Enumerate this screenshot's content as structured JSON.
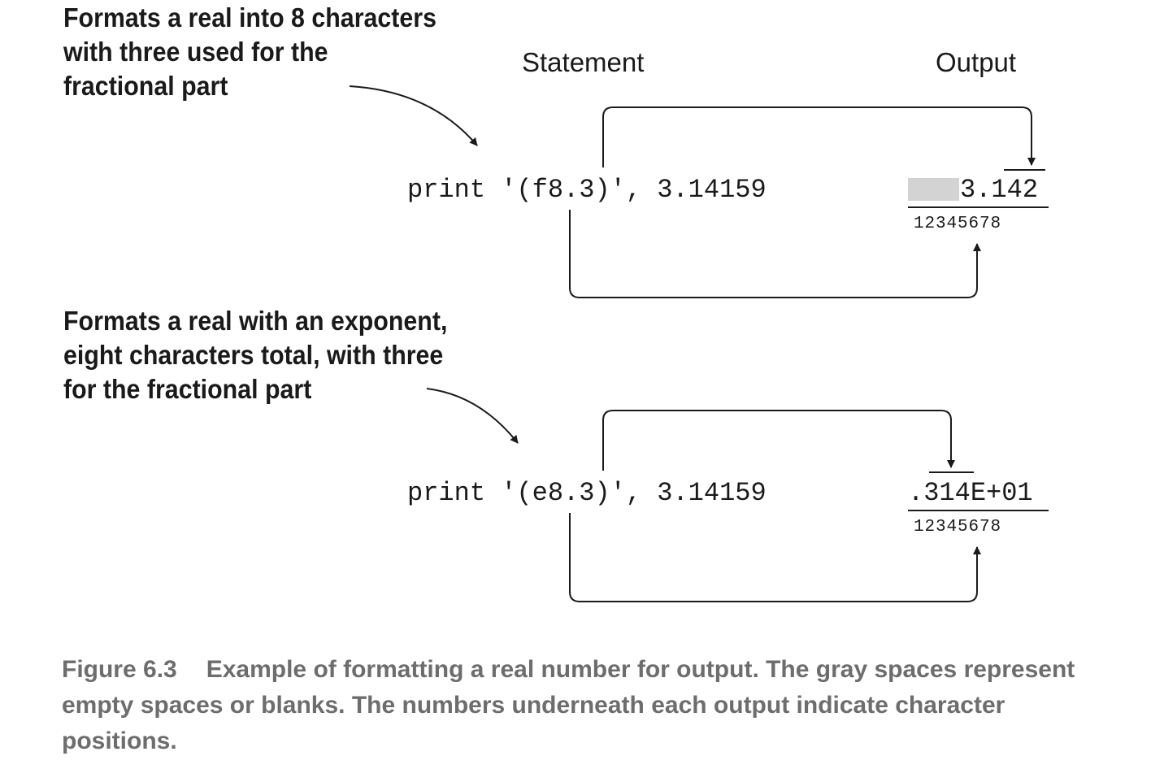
{
  "headers": {
    "statement": "Statement",
    "output": "Output"
  },
  "examples": [
    {
      "annotation": [
        "Formats a real into 8 characters",
        "with three used for the",
        "fractional part"
      ],
      "statement": "print '(f8.3)', 3.14159",
      "output": "3.142",
      "output_blank_positions": 3,
      "positions": "12345678"
    },
    {
      "annotation": [
        "Formats a real with an exponent,",
        "eight characters total, with three",
        "for the fractional part"
      ],
      "statement": "print '(e8.3)', 3.14159",
      "output": ".314E+01",
      "output_blank_positions": 0,
      "positions": "12345678"
    }
  ],
  "caption": {
    "figure": "Figure 6.3",
    "text": "Example of formatting a real number for output. The gray spaces represent empty spaces or blanks. The numbers underneath each output indicate character positions."
  },
  "colors": {
    "text": "#1a1a1a",
    "caption": "#6d6d6d",
    "blank": "#d3d3d3"
  }
}
